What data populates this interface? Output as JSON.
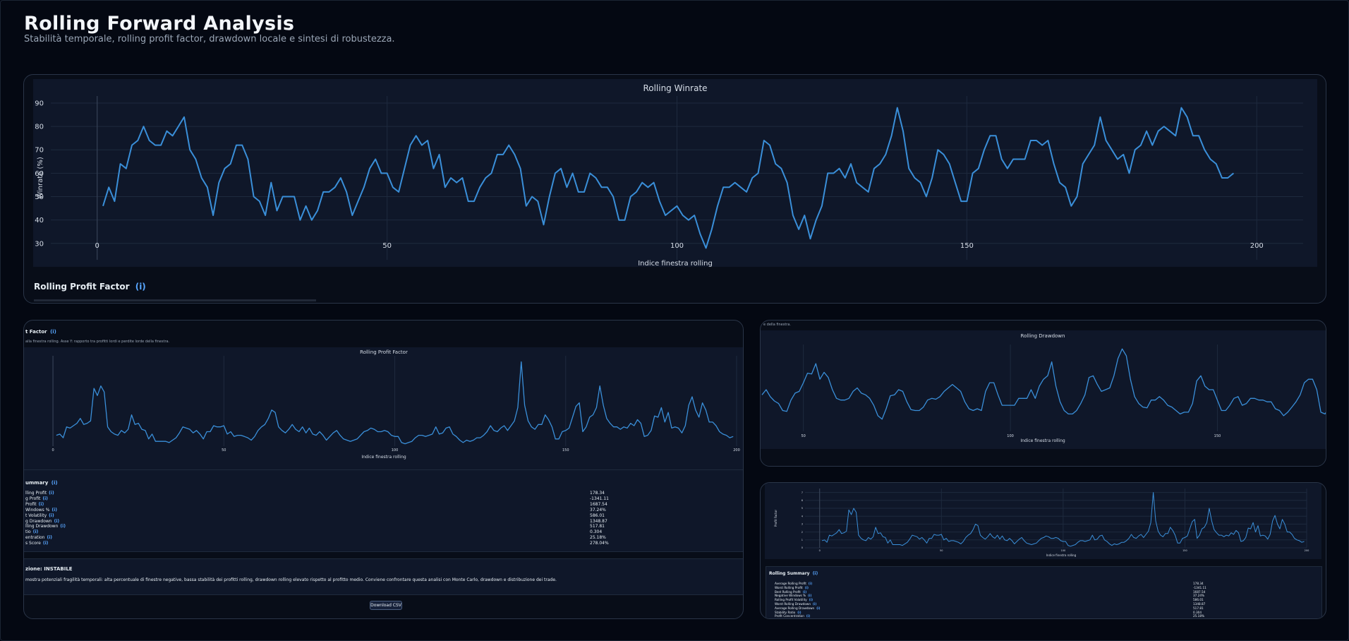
{
  "page": {
    "title": "Rolling Forward Analysis",
    "subtitle": "Stabilità temporale, rolling profit factor, drawdown locale e sintesi di robustezza."
  },
  "colors": {
    "line": "#3a8fd9",
    "background": "#040812",
    "plot_bg": "#0f1729",
    "accent": "#58a6ff"
  },
  "winrate_section": {
    "next_heading": "Rolling Profit Factor",
    "info_icon": "(i)"
  },
  "pf_card": {
    "heading": "t Factor",
    "info_icon": "(i)",
    "description": "alla finestra rolling. Asse Y: rapporto tra profitti lordi e perdite lorde della finestra.",
    "summary_heading": "ummary",
    "summary_rows": [
      {
        "label": "lling Profit",
        "value": "178.34"
      },
      {
        "label": "g Profit",
        "value": "-1341.11"
      },
      {
        "label": "Profit",
        "value": "1687.54"
      },
      {
        "label": "Windows %",
        "value": "37.24%"
      },
      {
        "label": "t Volatility",
        "value": "586.01"
      },
      {
        "label": "g Drawdown",
        "value": "1348.87"
      },
      {
        "label": "lling Drawdown",
        "value": "517.81"
      },
      {
        "label": "tio",
        "value": "0.304"
      },
      {
        "label": "entration",
        "value": "25.18%"
      },
      {
        "label": "s Score",
        "value": "278.04%"
      }
    ],
    "classification": "zione: INSTABILE",
    "conclusion": "mostra potenziali fragilità temporali: alta percentuale di finestre negative, bassa stabilità dei profitti rolling, drawdown rolling elevato rispetto al profitto medio. Conviene confrontare questa analisi con Monte Carlo, drawdown e distribuzione dei trade.",
    "download_label": "Download CSV"
  },
  "dd_card": {
    "top_note": "e della finestra."
  },
  "small_card": {
    "summary_heading": "Rolling Summary",
    "info_icon": "(i)",
    "summary_rows": [
      {
        "label": "Average Rolling Profit",
        "value": "178.34"
      },
      {
        "label": "Worst Rolling Profit",
        "value": "-1341.11"
      },
      {
        "label": "Best Rolling Profit",
        "value": "1687.54"
      },
      {
        "label": "Negative Windows %",
        "value": "37.24%"
      },
      {
        "label": "Rolling Profit Volatility",
        "value": "586.01"
      },
      {
        "label": "Worst Rolling Drawdown",
        "value": "1348.87"
      },
      {
        "label": "Average Rolling Drawdown",
        "value": "517.81"
      },
      {
        "label": "Stability Ratio",
        "value": "0.304"
      },
      {
        "label": "Profit Concentration",
        "value": "25.18%"
      }
    ]
  },
  "chart_data": [
    {
      "type": "line",
      "title": "Rolling Winrate",
      "xlabel": "Indice finestra rolling",
      "ylabel": "Winrate (%)",
      "xlim": [
        -8,
        208
      ],
      "ylim": [
        23,
        93
      ],
      "xticks": [
        0,
        50,
        100,
        150,
        200
      ],
      "yticks": [
        30,
        40,
        50,
        60,
        70,
        80,
        90
      ],
      "x_start": 1,
      "values": [
        46,
        54,
        48,
        64,
        62,
        72,
        74,
        80,
        74,
        72,
        72,
        78,
        76,
        80,
        84,
        70,
        66,
        58,
        54,
        42,
        56,
        62,
        64,
        72,
        72,
        66,
        50,
        48,
        42,
        56,
        44,
        50,
        50,
        50,
        40,
        46,
        40,
        44,
        52,
        52,
        54,
        58,
        52,
        42,
        48,
        54,
        62,
        66,
        60,
        60,
        54,
        52,
        62,
        72,
        76,
        72,
        74,
        62,
        68,
        54,
        58,
        56,
        58,
        48,
        48,
        54,
        58,
        60,
        68,
        68,
        72,
        68,
        62,
        46,
        50,
        48,
        38,
        50,
        60,
        62,
        54,
        60,
        52,
        52,
        60,
        58,
        54,
        54,
        50,
        40,
        40,
        50,
        52,
        56,
        54,
        56,
        48,
        42,
        44,
        46,
        42,
        40,
        42,
        34,
        28,
        36,
        46,
        54,
        54,
        56,
        54,
        52,
        58,
        60,
        74,
        72,
        64,
        62,
        56,
        42,
        36,
        42,
        32,
        40,
        46,
        60,
        60,
        62,
        58,
        64,
        56,
        54,
        52,
        62,
        64,
        68,
        76,
        88,
        78,
        62,
        58,
        56,
        50,
        58,
        70,
        68,
        64,
        56,
        48,
        48,
        60,
        62,
        70,
        76,
        76,
        66,
        62,
        66,
        66,
        66,
        74,
        74,
        72,
        74,
        64,
        56,
        54,
        46,
        50,
        64,
        68,
        72,
        84,
        74,
        70,
        66,
        68,
        60,
        70,
        72,
        78,
        72,
        78,
        80,
        78,
        76,
        88,
        84,
        76,
        76,
        70,
        66,
        64,
        58,
        58,
        60
      ]
    },
    {
      "type": "line",
      "title": "Rolling Profit Factor",
      "xlabel": "Indice finestra rolling",
      "ylabel": "",
      "xlim": [
        -6,
        200
      ],
      "ylim": [
        0,
        7.5
      ],
      "xticks": [
        0,
        50,
        100,
        150,
        200
      ],
      "x_start": 1,
      "values": [
        0.9,
        1.0,
        0.7,
        1.6,
        1.5,
        1.7,
        1.9,
        2.3,
        1.8,
        1.9,
        2.1,
        4.8,
        4.2,
        5.0,
        4.5,
        1.6,
        1.2,
        1.0,
        0.9,
        1.3,
        1.1,
        1.4,
        2.6,
        1.8,
        1.9,
        1.4,
        1.3,
        0.6,
        1.0,
        0.4,
        0.4,
        0.4,
        0.4,
        0.3,
        0.5,
        0.7,
        1.1,
        1.6,
        1.5,
        1.4,
        1.1,
        1.3,
        1.0,
        0.6,
        1.2,
        1.2,
        1.7,
        1.6,
        1.6,
        1.7,
        1.0,
        1.2,
        0.8,
        0.9,
        0.9,
        0.8,
        0.7,
        0.5,
        0.8,
        1.3,
        1.6,
        1.8,
        2.3,
        3.0,
        2.8,
        1.6,
        1.3,
        1.1,
        1.4,
        1.8,
        1.4,
        1.2,
        1.6,
        1.1,
        1.5,
        1.0,
        0.9,
        1.2,
        0.9,
        0.5,
        0.8,
        1.1,
        1.3,
        0.9,
        0.6,
        0.5,
        0.4,
        0.5,
        0.6,
        0.9,
        1.2,
        1.3,
        1.5,
        1.4,
        1.2,
        1.2,
        1.3,
        1.2,
        0.9,
        0.8,
        0.8,
        0.3,
        0.2,
        0.3,
        0.4,
        0.7,
        0.9,
        0.9,
        0.8,
        0.9,
        1.0,
        1.6,
        1.0,
        1.1,
        1.5,
        1.6,
        1.0,
        0.8,
        0.5,
        0.3,
        0.5,
        0.4,
        0.5,
        0.7,
        0.7,
        0.9,
        1.2,
        1.7,
        1.3,
        1.2,
        1.5,
        1.7,
        1.3,
        1.7,
        2.1,
        3.2,
        7.0,
        3.4,
        2.1,
        1.6,
        1.4,
        1.8,
        1.8,
        2.6,
        2.2,
        1.6,
        0.6,
        0.6,
        1.2,
        1.3,
        1.5,
        2.4,
        3.3,
        3.6,
        1.2,
        1.6,
        2.4,
        2.6,
        3.2,
        5.0,
        3.4,
        2.3,
        1.9,
        1.6,
        1.6,
        1.4,
        1.6,
        1.5,
        1.9,
        1.7,
        2.2,
        1.9,
        0.8,
        0.9,
        1.3,
        2.5,
        2.4,
        3.2,
        2.0,
        2.8,
        1.5,
        1.6,
        1.5,
        1.1,
        1.7,
        3.4,
        4.1,
        3.0,
        2.4,
        3.6,
        3.0,
        2.0,
        2.0,
        1.7,
        1.2,
        1.0,
        0.9,
        0.7,
        0.8
      ]
    },
    {
      "type": "line",
      "title": "Rolling Drawdown",
      "xlabel": "Indice finestra rolling",
      "ylabel": "",
      "xlim": [
        40,
        176
      ],
      "ylim": [
        0,
        10
      ],
      "xticks": [
        50,
        100,
        150
      ],
      "x_start": 40,
      "values": [
        4.2,
        4.8,
        4.0,
        3.5,
        3.2,
        2.4,
        2.3,
        3.6,
        4.4,
        4.6,
        5.6,
        6.7,
        6.6,
        7.8,
        6.0,
        6.8,
        6.2,
        4.8,
        3.8,
        3.6,
        3.6,
        3.8,
        4.6,
        5.0,
        4.4,
        4.2,
        3.8,
        3.0,
        1.8,
        1.4,
        2.6,
        4.1,
        4.2,
        4.8,
        4.6,
        3.4,
        2.5,
        2.4,
        2.4,
        2.8,
        3.6,
        3.8,
        3.7,
        4.0,
        4.6,
        5.0,
        5.4,
        5.0,
        4.6,
        3.4,
        2.6,
        2.4,
        2.6,
        2.4,
        4.6,
        5.6,
        5.6,
        4.2,
        3.0,
        3.0,
        3.0,
        3.0,
        3.8,
        3.8,
        3.8,
        4.8,
        3.8,
        5.2,
        6.0,
        6.4,
        8.0,
        5.2,
        3.4,
        2.4,
        2.0,
        2.0,
        2.4,
        3.2,
        4.2,
        6.2,
        6.4,
        5.4,
        4.6,
        4.8,
        5.0,
        6.4,
        8.4,
        9.5,
        8.7,
        6.0,
        4.0,
        3.2,
        2.8,
        2.7,
        3.6,
        3.6,
        4.0,
        3.6,
        3.0,
        2.8,
        2.4,
        2.0,
        2.2,
        2.2,
        3.2,
        5.8,
        6.4,
        5.2,
        4.8,
        4.8,
        3.6,
        2.4,
        2.4,
        3.0,
        3.8,
        4.0,
        3.0,
        3.2,
        3.8,
        3.8,
        3.6,
        3.6,
        3.4,
        3.4,
        2.6,
        2.4,
        1.8,
        2.2,
        2.8,
        3.4,
        4.2,
        5.6,
        6.0,
        6.0,
        4.8,
        2.2,
        2.0,
        2.8,
        4.0,
        5.6,
        6.6,
        6.8,
        6.6,
        5.0,
        4.0,
        2.8,
        2.6,
        2.6,
        1.8,
        1.4,
        1.6,
        1.8,
        2.6,
        2.6,
        2.6,
        2.6,
        2.4,
        2.0,
        2.0,
        2.0,
        2.0,
        2.4,
        3.2,
        3.2,
        3.6,
        4.2,
        3.0,
        3.0,
        1.8,
        2.0,
        3.6,
        3.6,
        3.6
      ]
    },
    {
      "type": "line",
      "title": "",
      "xlabel": "Indice finestra rolling",
      "ylabel": "Profit Factor",
      "xlim": [
        -6,
        200
      ],
      "ylim": [
        0,
        7.5
      ],
      "xticks": [
        0,
        50,
        100,
        150,
        200
      ],
      "yticks": [
        0,
        1,
        2,
        3,
        4,
        5,
        6,
        7
      ],
      "x_start": 1,
      "values": [
        0.9,
        1.0,
        0.7,
        1.6,
        1.5,
        1.7,
        1.9,
        2.3,
        1.8,
        1.9,
        2.1,
        4.8,
        4.2,
        5.0,
        4.5,
        1.6,
        1.2,
        1.0,
        0.9,
        1.3,
        1.1,
        1.4,
        2.6,
        1.8,
        1.9,
        1.4,
        1.3,
        0.6,
        1.0,
        0.4,
        0.4,
        0.4,
        0.4,
        0.3,
        0.5,
        0.7,
        1.1,
        1.6,
        1.5,
        1.4,
        1.1,
        1.3,
        1.0,
        0.6,
        1.2,
        1.2,
        1.7,
        1.6,
        1.6,
        1.7,
        1.0,
        1.2,
        0.8,
        0.9,
        0.9,
        0.8,
        0.7,
        0.5,
        0.8,
        1.3,
        1.6,
        1.8,
        2.3,
        3.0,
        2.8,
        1.6,
        1.3,
        1.1,
        1.4,
        1.8,
        1.4,
        1.2,
        1.6,
        1.1,
        1.5,
        1.0,
        0.9,
        1.2,
        0.9,
        0.5,
        0.8,
        1.1,
        1.3,
        0.9,
        0.6,
        0.5,
        0.4,
        0.5,
        0.6,
        0.9,
        1.2,
        1.3,
        1.5,
        1.4,
        1.2,
        1.2,
        1.3,
        1.2,
        0.9,
        0.8,
        0.8,
        0.3,
        0.2,
        0.3,
        0.4,
        0.7,
        0.9,
        0.9,
        0.8,
        0.9,
        1.0,
        1.6,
        1.0,
        1.1,
        1.5,
        1.6,
        1.0,
        0.8,
        0.5,
        0.3,
        0.5,
        0.4,
        0.5,
        0.7,
        0.7,
        0.9,
        1.2,
        1.7,
        1.3,
        1.2,
        1.5,
        1.7,
        1.3,
        1.7,
        2.1,
        3.2,
        7.0,
        3.4,
        2.1,
        1.6,
        1.4,
        1.8,
        1.8,
        2.6,
        2.2,
        1.6,
        0.6,
        0.6,
        1.2,
        1.3,
        1.5,
        2.4,
        3.3,
        3.6,
        1.2,
        1.6,
        2.4,
        2.6,
        3.2,
        5.0,
        3.4,
        2.3,
        1.9,
        1.6,
        1.6,
        1.4,
        1.6,
        1.5,
        1.9,
        1.7,
        2.2,
        1.9,
        0.8,
        0.9,
        1.3,
        2.5,
        2.4,
        3.2,
        2.0,
        2.8,
        1.5,
        1.6,
        1.5,
        1.1,
        1.7,
        3.4,
        4.1,
        3.0,
        2.4,
        3.6,
        3.0,
        2.0,
        2.0,
        1.7,
        1.2,
        1.0,
        0.9,
        0.7,
        0.8
      ]
    }
  ]
}
